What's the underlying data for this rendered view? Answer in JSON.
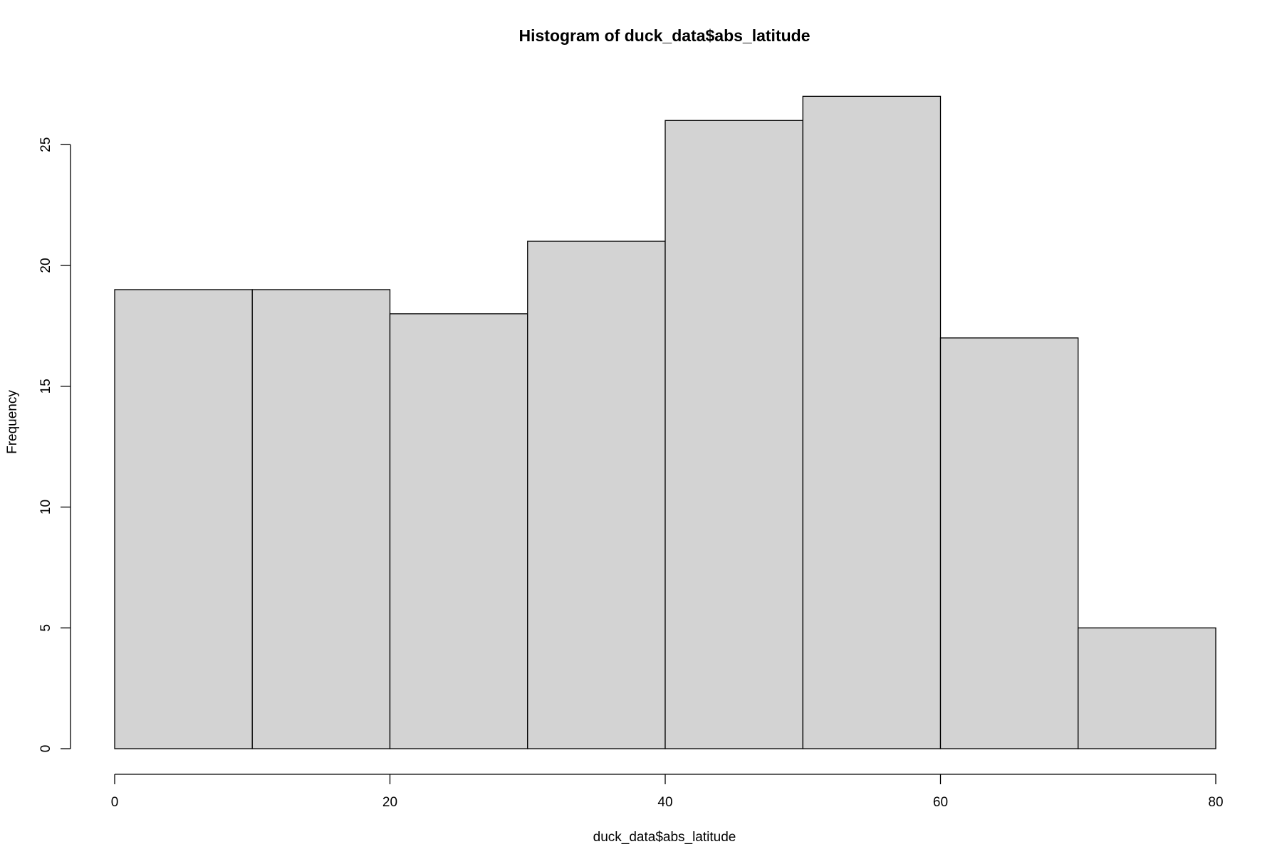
{
  "chart_data": {
    "type": "bar",
    "title": "Histogram of duck_data$abs_latitude",
    "xlabel": "duck_data$abs_latitude",
    "ylabel": "Frequency",
    "bins": [
      {
        "from": 0,
        "to": 10,
        "count": 19
      },
      {
        "from": 10,
        "to": 20,
        "count": 19
      },
      {
        "from": 20,
        "to": 30,
        "count": 18
      },
      {
        "from": 30,
        "to": 40,
        "count": 21
      },
      {
        "from": 40,
        "to": 50,
        "count": 26
      },
      {
        "from": 50,
        "to": 60,
        "count": 27
      },
      {
        "from": 60,
        "to": 70,
        "count": 17
      },
      {
        "from": 70,
        "to": 80,
        "count": 5
      }
    ],
    "xlim": [
      0,
      80
    ],
    "ylim": [
      0,
      27
    ],
    "x_ticks": [
      0,
      20,
      40,
      60,
      80
    ],
    "y_ticks": [
      0,
      5,
      10,
      15,
      20,
      25
    ],
    "grid": false,
    "legend": "none",
    "bar_fill": "#d3d3d3",
    "bar_stroke": "#000000"
  }
}
